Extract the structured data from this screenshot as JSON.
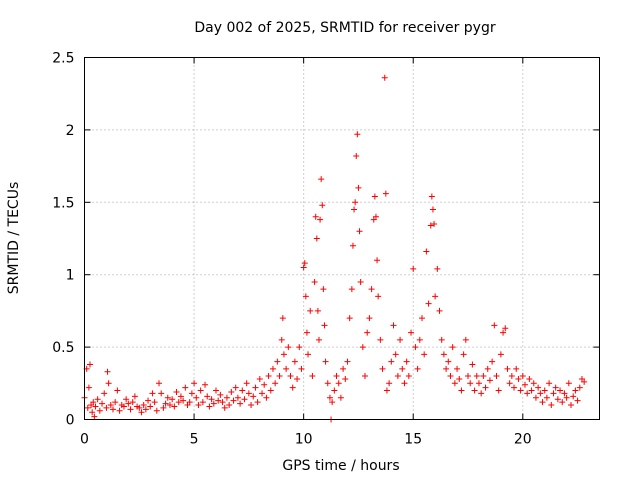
{
  "chart_data": {
    "type": "scatter",
    "title": "Day 002 of 2025, SRMTID for receiver pygr",
    "xlabel": "GPS time / hours",
    "ylabel": "SRMTID / TECUs",
    "xlim": [
      0,
      23.5
    ],
    "ylim": [
      0,
      2.5
    ],
    "xticks": [
      0,
      5,
      10,
      15,
      20
    ],
    "xtick_labels": [
      "0",
      "5",
      "10",
      "15",
      "20"
    ],
    "yticks": [
      0,
      0.5,
      1,
      1.5,
      2,
      2.5
    ],
    "ytick_labels": [
      "0",
      "0.5",
      "1",
      "1.5",
      "2",
      "2.5"
    ],
    "grid": true,
    "marker": "+",
    "marker_color": "#ff0000",
    "series": [
      {
        "name": "SRMTID",
        "points": [
          [
            0.0,
            0.15
          ],
          [
            0.1,
            0.35
          ],
          [
            0.15,
            0.08
          ],
          [
            0.2,
            0.22
          ],
          [
            0.25,
            0.38
          ],
          [
            0.3,
            0.1
          ],
          [
            0.35,
            0.05
          ],
          [
            0.4,
            0.12
          ],
          [
            0.45,
            0.02
          ],
          [
            0.5,
            0.09
          ],
          [
            0.6,
            0.14
          ],
          [
            0.7,
            0.06
          ],
          [
            0.8,
            0.11
          ],
          [
            0.9,
            0.18
          ],
          [
            1.0,
            0.08
          ],
          [
            1.05,
            0.33
          ],
          [
            1.1,
            0.25
          ],
          [
            1.2,
            0.1
          ],
          [
            1.3,
            0.07
          ],
          [
            1.4,
            0.12
          ],
          [
            1.5,
            0.2
          ],
          [
            1.6,
            0.06
          ],
          [
            1.7,
            0.1
          ],
          [
            1.8,
            0.09
          ],
          [
            1.9,
            0.14
          ],
          [
            2.0,
            0.11
          ],
          [
            2.1,
            0.07
          ],
          [
            2.2,
            0.12
          ],
          [
            2.3,
            0.16
          ],
          [
            2.4,
            0.09
          ],
          [
            2.5,
            0.08
          ],
          [
            2.6,
            0.05
          ],
          [
            2.7,
            0.1
          ],
          [
            2.8,
            0.07
          ],
          [
            2.9,
            0.13
          ],
          [
            3.0,
            0.09
          ],
          [
            3.1,
            0.18
          ],
          [
            3.2,
            0.12
          ],
          [
            3.3,
            0.06
          ],
          [
            3.4,
            0.25
          ],
          [
            3.5,
            0.18
          ],
          [
            3.6,
            0.08
          ],
          [
            3.7,
            0.11
          ],
          [
            3.8,
            0.15
          ],
          [
            3.9,
            0.1
          ],
          [
            4.0,
            0.14
          ],
          [
            4.1,
            0.09
          ],
          [
            4.2,
            0.19
          ],
          [
            4.3,
            0.12
          ],
          [
            4.4,
            0.16
          ],
          [
            4.5,
            0.13
          ],
          [
            4.6,
            0.22
          ],
          [
            4.7,
            0.1
          ],
          [
            4.8,
            0.12
          ],
          [
            4.9,
            0.18
          ],
          [
            5.0,
            0.25
          ],
          [
            5.1,
            0.15
          ],
          [
            5.2,
            0.1
          ],
          [
            5.3,
            0.2
          ],
          [
            5.4,
            0.12
          ],
          [
            5.5,
            0.24
          ],
          [
            5.6,
            0.16
          ],
          [
            5.7,
            0.09
          ],
          [
            5.8,
            0.14
          ],
          [
            5.9,
            0.11
          ],
          [
            6.0,
            0.2
          ],
          [
            6.1,
            0.13
          ],
          [
            6.2,
            0.17
          ],
          [
            6.3,
            0.12
          ],
          [
            6.4,
            0.08
          ],
          [
            6.5,
            0.15
          ],
          [
            6.6,
            0.1
          ],
          [
            6.7,
            0.19
          ],
          [
            6.8,
            0.13
          ],
          [
            6.9,
            0.22
          ],
          [
            7.0,
            0.15
          ],
          [
            7.1,
            0.11
          ],
          [
            7.2,
            0.2
          ],
          [
            7.3,
            0.14
          ],
          [
            7.4,
            0.25
          ],
          [
            7.5,
            0.18
          ],
          [
            7.6,
            0.1
          ],
          [
            7.7,
            0.16
          ],
          [
            7.8,
            0.22
          ],
          [
            7.9,
            0.12
          ],
          [
            8.0,
            0.28
          ],
          [
            8.1,
            0.18
          ],
          [
            8.2,
            0.24
          ],
          [
            8.3,
            0.15
          ],
          [
            8.4,
            0.3
          ],
          [
            8.5,
            0.2
          ],
          [
            8.6,
            0.35
          ],
          [
            8.7,
            0.25
          ],
          [
            8.8,
            0.4
          ],
          [
            8.9,
            0.3
          ],
          [
            9.0,
            0.55
          ],
          [
            9.05,
            0.7
          ],
          [
            9.1,
            0.45
          ],
          [
            9.2,
            0.35
          ],
          [
            9.3,
            0.5
          ],
          [
            9.4,
            0.3
          ],
          [
            9.5,
            0.22
          ],
          [
            9.6,
            0.4
          ],
          [
            9.7,
            0.28
          ],
          [
            9.8,
            0.5
          ],
          [
            9.9,
            0.35
          ],
          [
            10.0,
            1.05
          ],
          [
            10.05,
            1.08
          ],
          [
            10.1,
            0.85
          ],
          [
            10.15,
            0.6
          ],
          [
            10.2,
            0.45
          ],
          [
            10.3,
            0.75
          ],
          [
            10.4,
            0.3
          ],
          [
            10.5,
            0.95
          ],
          [
            10.55,
            1.4
          ],
          [
            10.6,
            1.25
          ],
          [
            10.65,
            0.75
          ],
          [
            10.7,
            0.55
          ],
          [
            10.75,
            1.38
          ],
          [
            10.8,
            1.66
          ],
          [
            10.85,
            1.48
          ],
          [
            10.9,
            0.9
          ],
          [
            10.95,
            0.65
          ],
          [
            11.0,
            0.4
          ],
          [
            11.1,
            0.25
          ],
          [
            11.2,
            0.15
          ],
          [
            11.25,
            0.0
          ],
          [
            11.3,
            0.12
          ],
          [
            11.4,
            0.2
          ],
          [
            11.5,
            0.3
          ],
          [
            11.6,
            0.25
          ],
          [
            11.7,
            0.15
          ],
          [
            11.8,
            0.35
          ],
          [
            11.9,
            0.28
          ],
          [
            12.0,
            0.4
          ],
          [
            12.1,
            0.7
          ],
          [
            12.2,
            0.9
          ],
          [
            12.25,
            1.2
          ],
          [
            12.3,
            1.45
          ],
          [
            12.35,
            1.5
          ],
          [
            12.4,
            1.82
          ],
          [
            12.45,
            1.97
          ],
          [
            12.5,
            1.6
          ],
          [
            12.55,
            1.3
          ],
          [
            12.6,
            0.95
          ],
          [
            12.7,
            0.5
          ],
          [
            12.8,
            0.3
          ],
          [
            12.9,
            0.6
          ],
          [
            13.0,
            0.7
          ],
          [
            13.1,
            0.9
          ],
          [
            13.2,
            1.38
          ],
          [
            13.25,
            1.54
          ],
          [
            13.3,
            1.4
          ],
          [
            13.35,
            1.1
          ],
          [
            13.4,
            0.85
          ],
          [
            13.5,
            0.55
          ],
          [
            13.6,
            0.35
          ],
          [
            13.7,
            2.36
          ],
          [
            13.75,
            1.56
          ],
          [
            13.8,
            0.2
          ],
          [
            13.9,
            0.25
          ],
          [
            14.0,
            0.4
          ],
          [
            14.1,
            0.65
          ],
          [
            14.2,
            0.45
          ],
          [
            14.3,
            0.3
          ],
          [
            14.4,
            0.55
          ],
          [
            14.5,
            0.35
          ],
          [
            14.6,
            0.25
          ],
          [
            14.7,
            0.4
          ],
          [
            14.8,
            0.3
          ],
          [
            14.9,
            0.6
          ],
          [
            15.0,
            1.04
          ],
          [
            15.1,
            0.5
          ],
          [
            15.2,
            0.35
          ],
          [
            15.3,
            0.55
          ],
          [
            15.4,
            0.7
          ],
          [
            15.5,
            0.45
          ],
          [
            15.6,
            1.16
          ],
          [
            15.7,
            0.8
          ],
          [
            15.8,
            1.34
          ],
          [
            15.85,
            1.54
          ],
          [
            15.9,
            1.45
          ],
          [
            15.95,
            1.35
          ],
          [
            16.0,
            0.85
          ],
          [
            16.1,
            1.04
          ],
          [
            16.2,
            0.75
          ],
          [
            16.3,
            0.55
          ],
          [
            16.4,
            0.45
          ],
          [
            16.5,
            0.35
          ],
          [
            16.6,
            0.4
          ],
          [
            16.7,
            0.3
          ],
          [
            16.8,
            0.5
          ],
          [
            16.9,
            0.25
          ],
          [
            17.0,
            0.35
          ],
          [
            17.1,
            0.28
          ],
          [
            17.2,
            0.2
          ],
          [
            17.3,
            0.45
          ],
          [
            17.4,
            0.55
          ],
          [
            17.5,
            0.3
          ],
          [
            17.6,
            0.25
          ],
          [
            17.7,
            0.38
          ],
          [
            17.8,
            0.2
          ],
          [
            17.9,
            0.3
          ],
          [
            18.0,
            0.25
          ],
          [
            18.1,
            0.18
          ],
          [
            18.2,
            0.3
          ],
          [
            18.3,
            0.22
          ],
          [
            18.4,
            0.35
          ],
          [
            18.5,
            0.27
          ],
          [
            18.6,
            0.4
          ],
          [
            18.7,
            0.65
          ],
          [
            18.8,
            0.3
          ],
          [
            18.9,
            0.2
          ],
          [
            19.0,
            0.45
          ],
          [
            19.1,
            0.6
          ],
          [
            19.2,
            0.63
          ],
          [
            19.3,
            0.35
          ],
          [
            19.4,
            0.25
          ],
          [
            19.5,
            0.3
          ],
          [
            19.6,
            0.22
          ],
          [
            19.7,
            0.35
          ],
          [
            19.8,
            0.28
          ],
          [
            19.9,
            0.2
          ],
          [
            20.0,
            0.3
          ],
          [
            20.1,
            0.24
          ],
          [
            20.2,
            0.18
          ],
          [
            20.3,
            0.28
          ],
          [
            20.4,
            0.2
          ],
          [
            20.5,
            0.25
          ],
          [
            20.6,
            0.15
          ],
          [
            20.7,
            0.22
          ],
          [
            20.8,
            0.18
          ],
          [
            20.9,
            0.12
          ],
          [
            21.0,
            0.2
          ],
          [
            21.1,
            0.15
          ],
          [
            21.2,
            0.25
          ],
          [
            21.3,
            0.1
          ],
          [
            21.4,
            0.18
          ],
          [
            21.5,
            0.22
          ],
          [
            21.6,
            0.14
          ],
          [
            21.7,
            0.2
          ],
          [
            21.8,
            0.12
          ],
          [
            21.9,
            0.18
          ],
          [
            22.0,
            0.15
          ],
          [
            22.1,
            0.25
          ],
          [
            22.2,
            0.1
          ],
          [
            22.3,
            0.16
          ],
          [
            22.4,
            0.2
          ],
          [
            22.5,
            0.13
          ],
          [
            22.6,
            0.22
          ],
          [
            22.7,
            0.28
          ],
          [
            22.8,
            0.26
          ]
        ]
      }
    ]
  }
}
